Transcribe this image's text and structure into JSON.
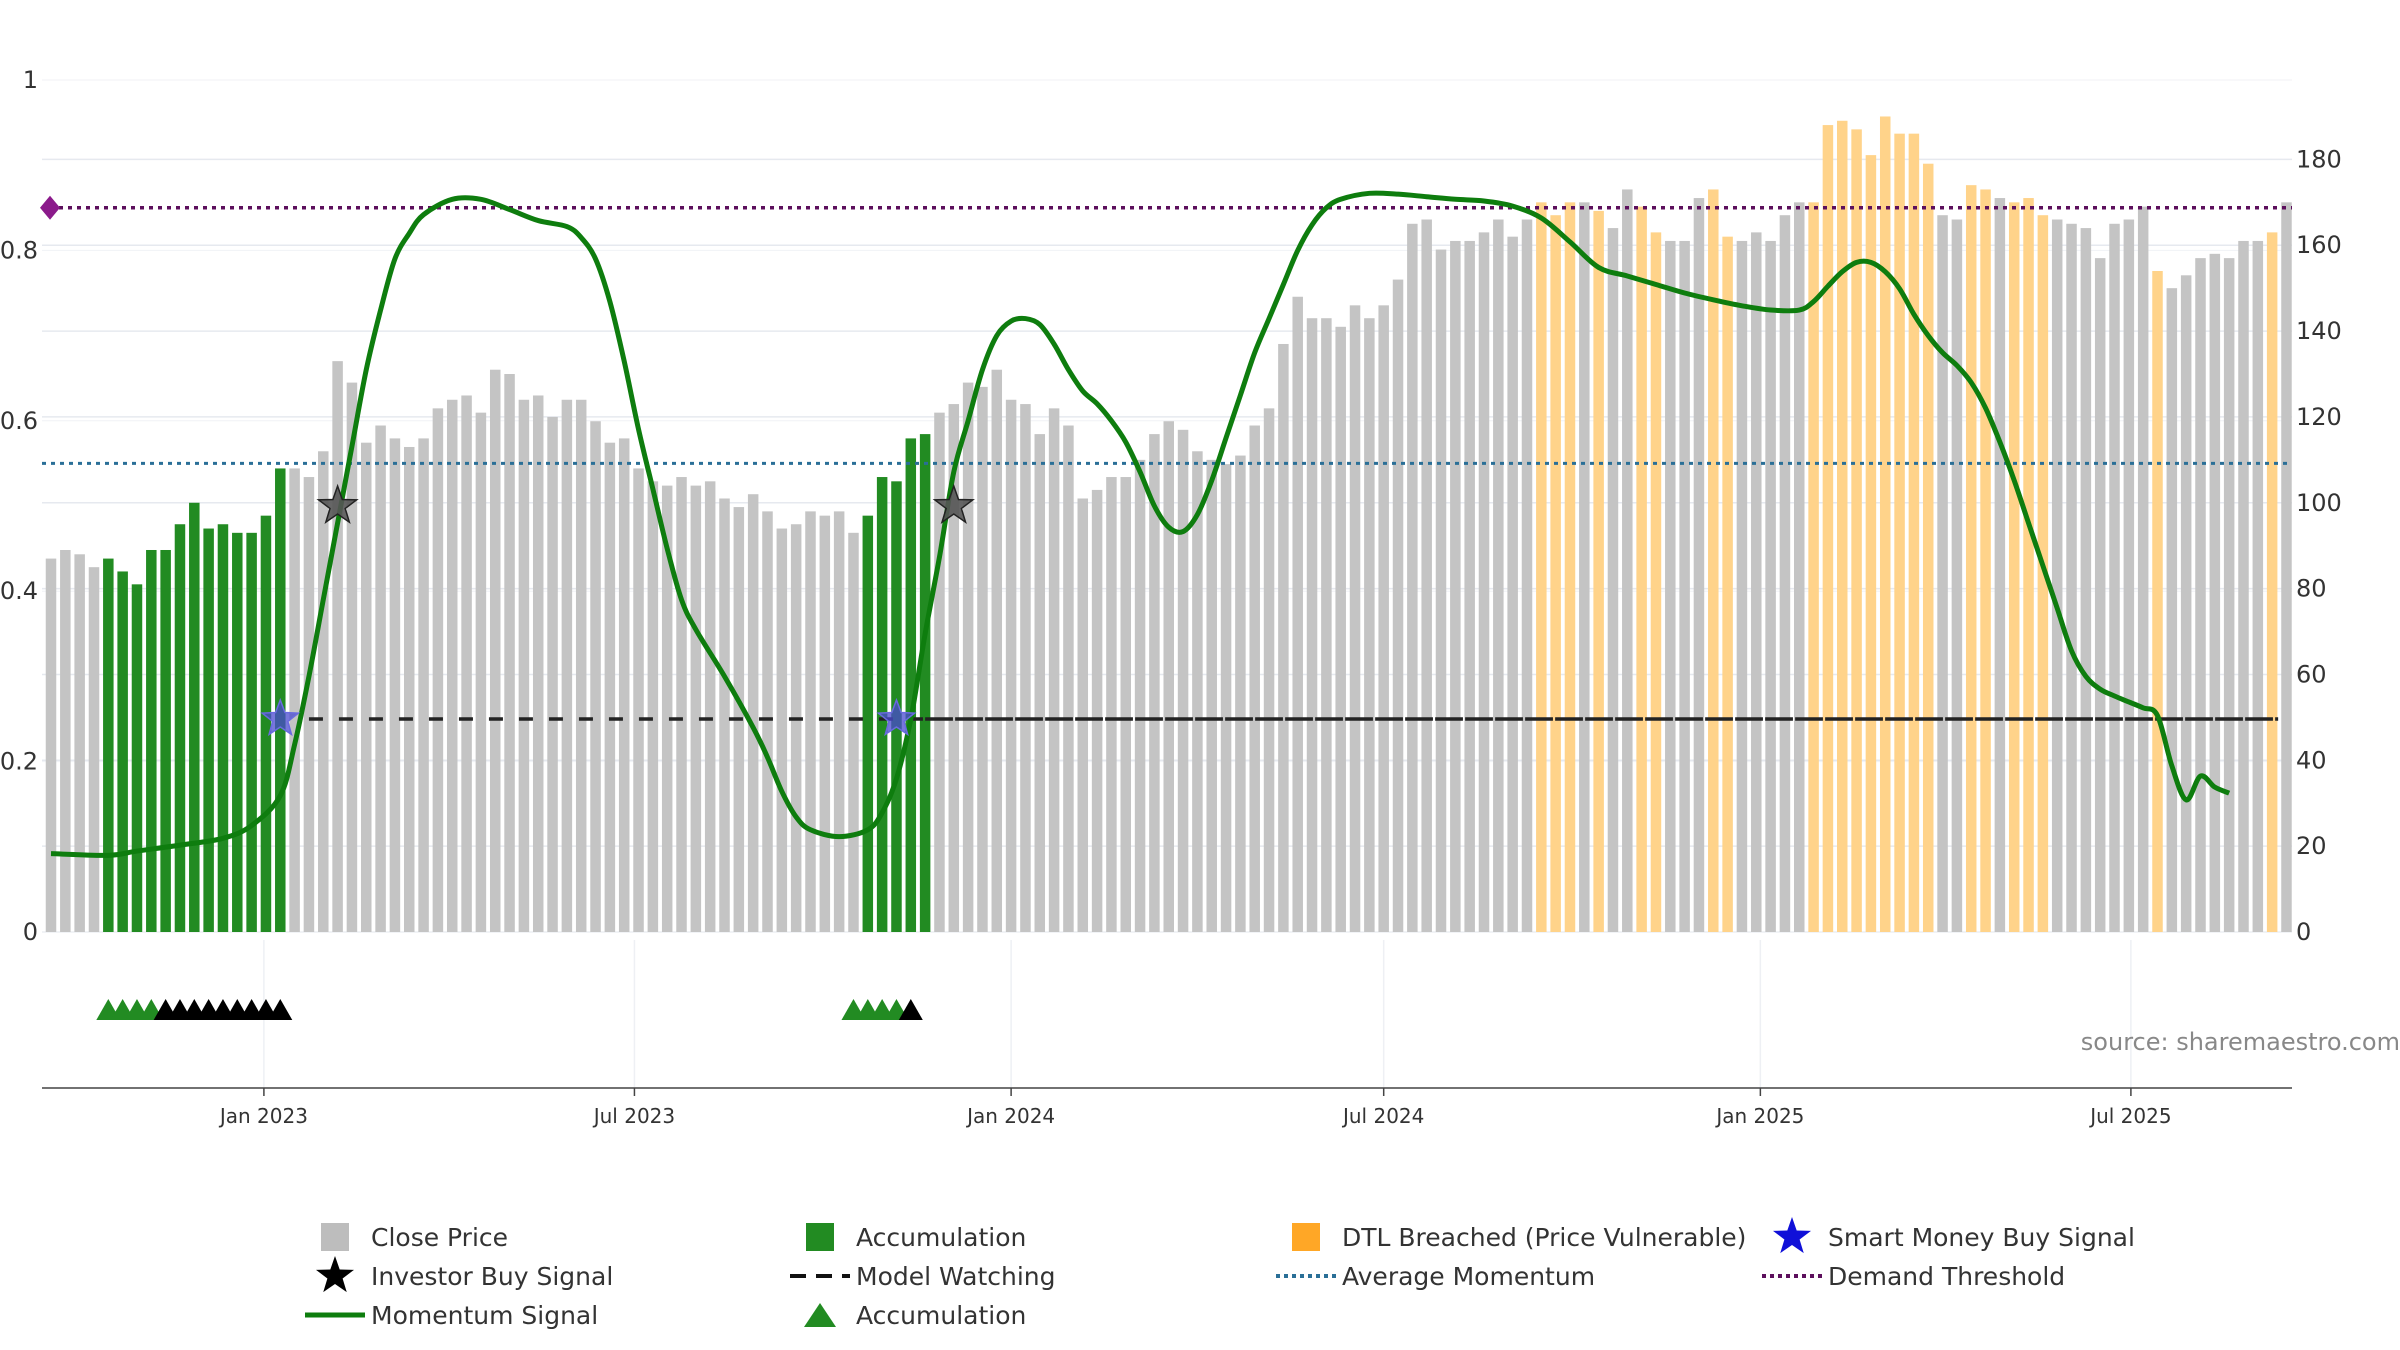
{
  "chart_data": {
    "type": "bar",
    "left_axis": {
      "ylim": [
        0,
        1
      ],
      "ticks": [
        "0",
        "0.2",
        "0.4",
        "0.6",
        "0.8",
        "1"
      ]
    },
    "right_axis": {
      "ylim": [
        0,
        198.5
      ],
      "ticks": [
        "0",
        "20",
        "40",
        "60",
        "80",
        "100",
        "120",
        "140",
        "160",
        "180"
      ]
    },
    "x_ticks": [
      "Jan 2023",
      "Jul 2023",
      "Jan 2024",
      "Jul 2024",
      "Jan 2025",
      "Jul 2025"
    ],
    "price_start_date": "2022-09-19",
    "price_interval_days": 7,
    "close_price": [
      87,
      89,
      88,
      85,
      87,
      84,
      81,
      89,
      89,
      95,
      100,
      94,
      95,
      93,
      93,
      97,
      108,
      108,
      106,
      112,
      133,
      128,
      114,
      118,
      115,
      113,
      115,
      122,
      124,
      125,
      121,
      131,
      130,
      124,
      125,
      120,
      124,
      124,
      119,
      114,
      115,
      108,
      105,
      104,
      106,
      104,
      105,
      101,
      99,
      102,
      98,
      94,
      95,
      98,
      97,
      98,
      93,
      97,
      106,
      105,
      115,
      116,
      121,
      123,
      128,
      127,
      131,
      124,
      123,
      116,
      122,
      118,
      101,
      103,
      106,
      106,
      110,
      116,
      119,
      117,
      112,
      110,
      109,
      111,
      118,
      122,
      137,
      148,
      143,
      143,
      141,
      146,
      143,
      146,
      152,
      165,
      166,
      159,
      161,
      161,
      163,
      166,
      162,
      166,
      170,
      167,
      170,
      170,
      168,
      164,
      173,
      169,
      163,
      161,
      161,
      171,
      173,
      162,
      161,
      163,
      161,
      167,
      170,
      170,
      188,
      189,
      187,
      181,
      190,
      186,
      186,
      179,
      167,
      166,
      174,
      173,
      171,
      170,
      171,
      167,
      166,
      165,
      164,
      157,
      165,
      166,
      169,
      154,
      150,
      153,
      157,
      158,
      157,
      161,
      161,
      163,
      170
    ],
    "accumulation_ranges": [
      [
        4,
        16
      ],
      [
        57,
        61
      ]
    ],
    "dtl_breached_ranges": [
      [
        104,
        106
      ],
      [
        108,
        108
      ],
      [
        111,
        112
      ],
      [
        116,
        116
      ],
      [
        117,
        117
      ],
      [
        123,
        131
      ],
      [
        134,
        135
      ],
      [
        137,
        139
      ],
      [
        147,
        147
      ],
      [
        155,
        155
      ]
    ],
    "momentum_signal": [
      [
        0,
        0.092
      ],
      [
        4,
        0.09
      ],
      [
        6,
        0.095
      ],
      [
        9,
        0.102
      ],
      [
        12,
        0.11
      ],
      [
        14,
        0.125
      ],
      [
        16,
        0.16
      ],
      [
        17,
        0.22
      ],
      [
        18,
        0.3
      ],
      [
        19,
        0.39
      ],
      [
        20,
        0.48
      ],
      [
        21,
        0.57
      ],
      [
        22,
        0.66
      ],
      [
        23,
        0.73
      ],
      [
        24,
        0.79
      ],
      [
        25,
        0.82
      ],
      [
        26,
        0.842
      ],
      [
        28,
        0.86
      ],
      [
        30,
        0.86
      ],
      [
        32,
        0.848
      ],
      [
        34,
        0.835
      ],
      [
        36,
        0.828
      ],
      [
        37,
        0.815
      ],
      [
        38,
        0.79
      ],
      [
        39,
        0.74
      ],
      [
        40,
        0.67
      ],
      [
        41,
        0.59
      ],
      [
        42,
        0.52
      ],
      [
        43,
        0.45
      ],
      [
        44,
        0.39
      ],
      [
        45,
        0.355
      ],
      [
        47,
        0.3
      ],
      [
        49,
        0.24
      ],
      [
        50,
        0.205
      ],
      [
        51,
        0.165
      ],
      [
        52,
        0.135
      ],
      [
        53,
        0.12
      ],
      [
        55,
        0.112
      ],
      [
        57,
        0.12
      ],
      [
        58,
        0.14
      ],
      [
        59,
        0.18
      ],
      [
        60,
        0.25
      ],
      [
        61,
        0.35
      ],
      [
        62,
        0.44
      ],
      [
        63,
        0.54
      ],
      [
        64,
        0.6
      ],
      [
        65,
        0.66
      ],
      [
        66,
        0.7
      ],
      [
        67,
        0.717
      ],
      [
        68,
        0.72
      ],
      [
        69,
        0.713
      ],
      [
        70,
        0.69
      ],
      [
        71,
        0.66
      ],
      [
        72,
        0.635
      ],
      [
        73,
        0.62
      ],
      [
        74,
        0.6
      ],
      [
        75,
        0.575
      ],
      [
        76,
        0.54
      ],
      [
        77,
        0.5
      ],
      [
        78,
        0.475
      ],
      [
        79,
        0.47
      ],
      [
        80,
        0.49
      ],
      [
        81,
        0.53
      ],
      [
        82,
        0.58
      ],
      [
        83,
        0.63
      ],
      [
        84,
        0.68
      ],
      [
        85,
        0.72
      ],
      [
        86,
        0.76
      ],
      [
        87,
        0.8
      ],
      [
        88,
        0.83
      ],
      [
        89,
        0.85
      ],
      [
        90,
        0.86
      ],
      [
        92,
        0.867
      ],
      [
        94,
        0.866
      ],
      [
        96,
        0.863
      ],
      [
        98,
        0.86
      ],
      [
        100,
        0.858
      ],
      [
        102,
        0.852
      ],
      [
        104,
        0.838
      ],
      [
        106,
        0.81
      ],
      [
        108,
        0.78
      ],
      [
        110,
        0.77
      ],
      [
        112,
        0.76
      ],
      [
        114,
        0.75
      ],
      [
        116,
        0.742
      ],
      [
        118,
        0.735
      ],
      [
        120,
        0.73
      ],
      [
        122,
        0.73
      ],
      [
        123,
        0.74
      ],
      [
        124,
        0.758
      ],
      [
        125,
        0.775
      ],
      [
        126,
        0.786
      ],
      [
        127,
        0.786
      ],
      [
        128,
        0.775
      ],
      [
        129,
        0.755
      ],
      [
        130,
        0.725
      ],
      [
        131,
        0.7
      ],
      [
        132,
        0.68
      ],
      [
        133,
        0.665
      ],
      [
        134,
        0.645
      ],
      [
        135,
        0.615
      ],
      [
        136,
        0.575
      ],
      [
        137,
        0.53
      ],
      [
        138,
        0.48
      ],
      [
        139,
        0.43
      ],
      [
        140,
        0.38
      ],
      [
        141,
        0.33
      ],
      [
        142,
        0.3
      ],
      [
        143,
        0.285
      ],
      [
        144,
        0.277
      ],
      [
        145,
        0.27
      ],
      [
        146,
        0.263
      ],
      [
        147,
        0.254
      ],
      [
        148,
        0.195
      ],
      [
        149,
        0.155
      ],
      [
        150,
        0.183
      ],
      [
        151,
        0.17
      ],
      [
        152,
        0.163
      ]
    ],
    "average_momentum": 0.55,
    "demand_threshold": 0.85,
    "model_watching": [
      [
        18,
        155,
        0.25
      ],
      [
        61,
        155,
        0.25
      ]
    ],
    "investor_buy_signals": [
      [
        20,
        0.5
      ],
      [
        63,
        0.5
      ]
    ],
    "smart_money_buy_signals": [
      [
        16,
        0.25
      ],
      [
        59,
        0.25
      ]
    ],
    "accumulation_markers": [
      {
        "index": 4,
        "color": "green"
      },
      {
        "index": 5,
        "color": "green"
      },
      {
        "index": 6,
        "color": "green"
      },
      {
        "index": 7,
        "color": "green"
      },
      {
        "index": 8,
        "color": "black"
      },
      {
        "index": 9,
        "color": "black"
      },
      {
        "index": 10,
        "color": "black"
      },
      {
        "index": 11,
        "color": "black"
      },
      {
        "index": 12,
        "color": "black"
      },
      {
        "index": 13,
        "color": "black"
      },
      {
        "index": 14,
        "color": "black"
      },
      {
        "index": 15,
        "color": "black"
      },
      {
        "index": 16,
        "color": "black"
      },
      {
        "index": 56,
        "color": "green"
      },
      {
        "index": 57,
        "color": "green"
      },
      {
        "index": 58,
        "color": "green"
      },
      {
        "index": 59,
        "color": "green"
      },
      {
        "index": 60,
        "color": "black"
      }
    ],
    "colors": {
      "close_price": "#c4c4c4",
      "accumulation": "#228b22",
      "dtl_breached": "#ffd38a",
      "momentum": "#0e7d0e",
      "average_momentum": "#2a6f97",
      "demand_threshold": "#5c0f5c",
      "model_watching": "#222222",
      "smart_money": "#1c1cd6",
      "investor": "#000000",
      "legend_dtl": "#ffa726"
    },
    "source": "source: sharemaestro.com",
    "legend": [
      {
        "label": "Close Price",
        "symbol": "square",
        "color": "#bdbdbd"
      },
      {
        "label": "Accumulation",
        "symbol": "square",
        "color": "#228b22"
      },
      {
        "label": "DTL Breached (Price Vulnerable)",
        "symbol": "square",
        "color": "#ffa726"
      },
      {
        "label": "Smart Money Buy Signal",
        "symbol": "star",
        "color": "#1010d8"
      },
      {
        "label": "Investor Buy Signal",
        "symbol": "star",
        "color": "#000000"
      },
      {
        "label": "Model Watching",
        "symbol": "dash",
        "color": "#111111"
      },
      {
        "label": "Average Momentum",
        "symbol": "dotted",
        "color": "#2a6f97"
      },
      {
        "label": "Demand Threshold",
        "symbol": "dotted",
        "color": "#5c0f5c"
      },
      {
        "label": "Momentum Signal",
        "symbol": "line",
        "color": "#0e7d0e"
      },
      {
        "label": "Accumulation",
        "symbol": "triangle",
        "color": "#228b22"
      }
    ]
  }
}
